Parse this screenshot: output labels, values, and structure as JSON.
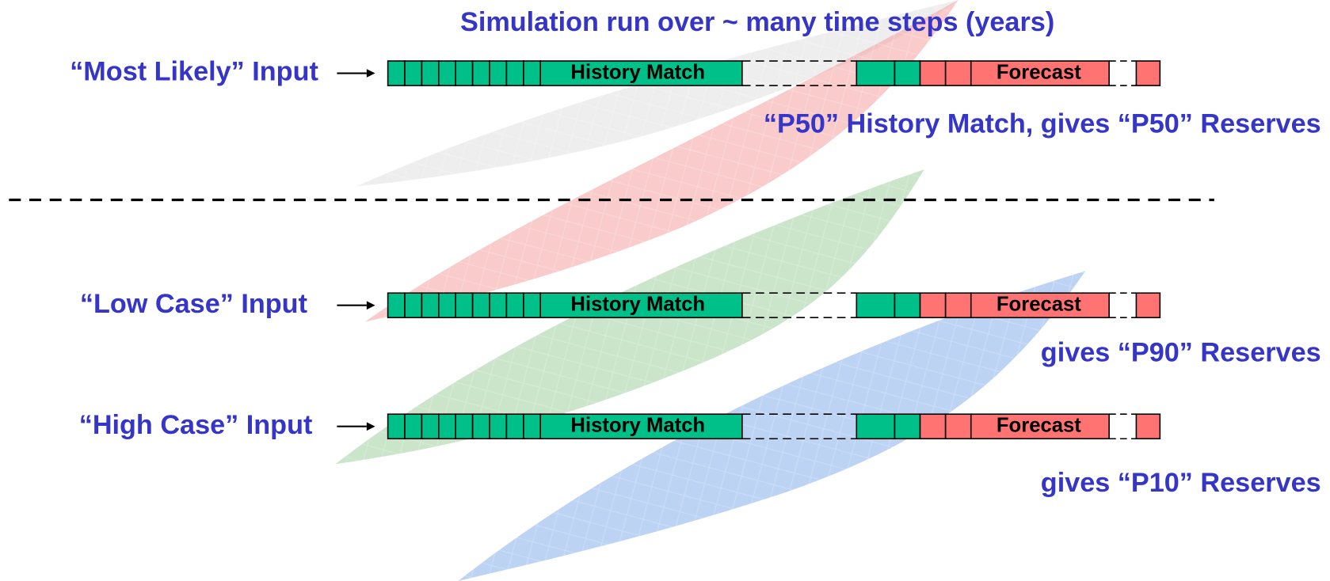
{
  "title": "Simulation run over ~ many time steps (years)",
  "rows": [
    {
      "input": "“Most Likely” Input",
      "history": "History Match",
      "forecast": "Forecast",
      "result": "“P50” History Match, gives “P50” Reserves"
    },
    {
      "input": "“Low Case” Input",
      "history": "History Match",
      "forecast": "Forecast",
      "result": "gives “P90” Reserves"
    },
    {
      "input": "“High Case” Input",
      "history": "History Match",
      "forecast": "Forecast",
      "result": "gives “P10” Reserves"
    }
  ]
}
